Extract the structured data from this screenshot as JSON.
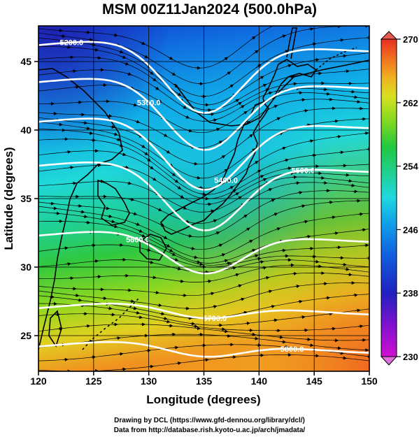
{
  "title": "MSM 00Z11Jan2024 (500.0hPa)",
  "x_axis": {
    "label": "Longitude (degrees)",
    "ticks": [
      "120",
      "125",
      "130",
      "135",
      "140",
      "145",
      "150"
    ],
    "range": [
      120,
      150
    ]
  },
  "y_axis": {
    "label": "Latitude  (degrees)",
    "ticks": [
      "25",
      "30",
      "35",
      "40",
      "45"
    ],
    "range": [
      22.4,
      47.6
    ]
  },
  "colorbar": {
    "ticks": [
      "230",
      "238",
      "246",
      "254",
      "262",
      "270"
    ],
    "range": [
      230,
      270
    ],
    "colors": [
      "#d010d0",
      "#8010d0",
      "#2020c0",
      "#1060e0",
      "#10a0e8",
      "#20d8e0",
      "#20d090",
      "#20c840",
      "#80d820",
      "#d8e020",
      "#f0b020",
      "#f07020",
      "#e83020"
    ]
  },
  "contours": [
    {
      "label": "5200.0",
      "lat": 46.2
    },
    {
      "label": "5300.0",
      "lat": 43.5
    },
    {
      "label": "5400.0",
      "lat": 40.6
    },
    {
      "label": "5500.0",
      "lat": 37.4
    },
    {
      "label": "5600.0",
      "lat": 32.3
    },
    {
      "label": "5700.0",
      "lat": 27.0
    },
    {
      "label": "5800.0",
      "lat": 24.2
    }
  ],
  "credits": [
    "Drawing by DCL (https://www.gfd-dennou.org/library/dcl/)",
    "Data from http://database.rish.kyoto-u.ac.jp/arch/jmadata/"
  ]
}
